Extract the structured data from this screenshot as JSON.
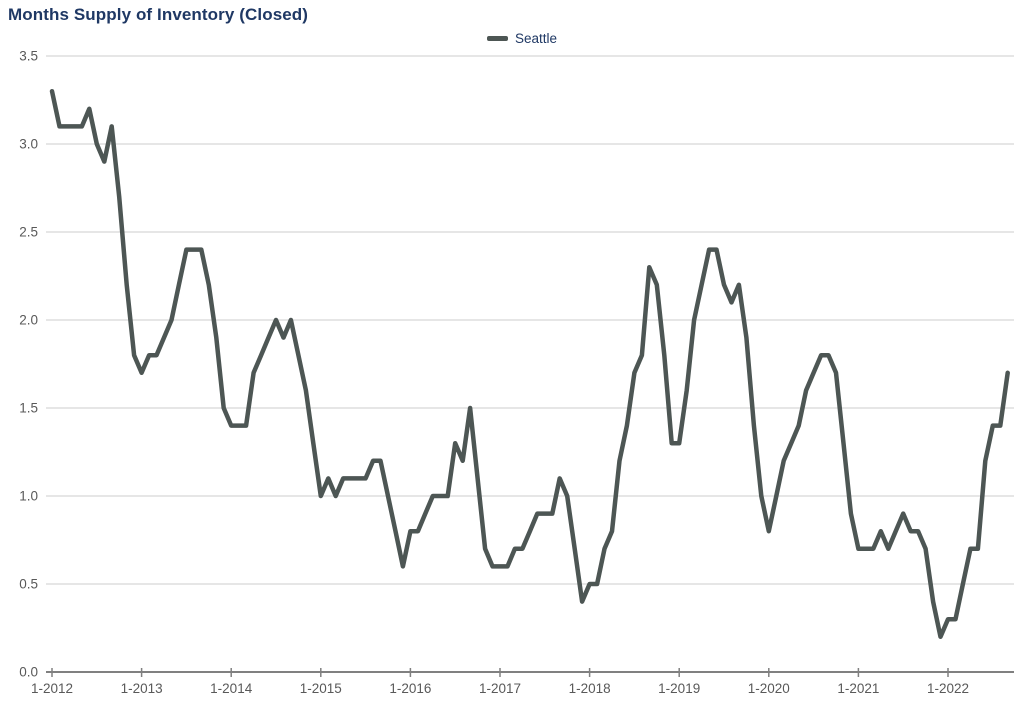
{
  "page": {
    "title": "Months Supply of Inventory (Closed)"
  },
  "legend": {
    "series_label": "Seattle"
  },
  "colors": {
    "title_text": "#1f3864",
    "legend_text": "#1f3864",
    "series_line": "#4d5654",
    "gridline": "#cccccc",
    "axis_line": "#808080",
    "tick_text": "#595959"
  },
  "chart_data": {
    "type": "line",
    "title": "Months Supply of Inventory (Closed)",
    "xlabel": "",
    "ylabel": "",
    "ylim": [
      0.0,
      3.5
    ],
    "grid": "horizontal",
    "legend_position": "top-center",
    "y_tick_labels": [
      "0.0",
      "0.5",
      "1.0",
      "1.5",
      "2.0",
      "2.5",
      "3.0",
      "3.5"
    ],
    "y_tick_values": [
      0.0,
      0.5,
      1.0,
      1.5,
      2.0,
      2.5,
      3.0,
      3.5
    ],
    "x_tick_labels": [
      "1-2012",
      "1-2013",
      "1-2014",
      "1-2015",
      "1-2016",
      "1-2017",
      "1-2018",
      "1-2019",
      "1-2020",
      "1-2021",
      "1-2022"
    ],
    "x_start": "2012-01",
    "x_end": "2022-09",
    "frequency": "monthly",
    "series": [
      {
        "name": "Seattle",
        "color": "#4d5654",
        "values": [
          3.3,
          3.1,
          3.1,
          3.1,
          3.1,
          3.2,
          3.0,
          2.9,
          3.1,
          2.7,
          2.2,
          1.8,
          1.7,
          1.8,
          1.8,
          1.9,
          2.0,
          2.2,
          2.4,
          2.4,
          2.4,
          2.2,
          1.9,
          1.5,
          1.4,
          1.4,
          1.4,
          1.7,
          1.8,
          1.9,
          2.0,
          1.9,
          2.0,
          1.8,
          1.6,
          1.3,
          1.0,
          1.1,
          1.0,
          1.1,
          1.1,
          1.1,
          1.1,
          1.2,
          1.2,
          1.0,
          0.8,
          0.6,
          0.8,
          0.8,
          0.9,
          1.0,
          1.0,
          1.0,
          1.3,
          1.2,
          1.5,
          1.1,
          0.7,
          0.6,
          0.6,
          0.6,
          0.7,
          0.7,
          0.8,
          0.9,
          0.9,
          0.9,
          1.1,
          1.0,
          0.7,
          0.4,
          0.5,
          0.5,
          0.7,
          0.8,
          1.2,
          1.4,
          1.7,
          1.8,
          2.3,
          2.2,
          1.8,
          1.3,
          1.3,
          1.6,
          2.0,
          2.2,
          2.4,
          2.4,
          2.2,
          2.1,
          2.2,
          1.9,
          1.4,
          1.0,
          0.8,
          1.0,
          1.2,
          1.3,
          1.4,
          1.6,
          1.7,
          1.8,
          1.8,
          1.7,
          1.3,
          0.9,
          0.7,
          0.7,
          0.7,
          0.8,
          0.7,
          0.8,
          0.9,
          0.8,
          0.8,
          0.7,
          0.4,
          0.2,
          0.3,
          0.3,
          0.5,
          0.7,
          0.7,
          1.2,
          1.4,
          1.4,
          1.7
        ]
      }
    ]
  }
}
